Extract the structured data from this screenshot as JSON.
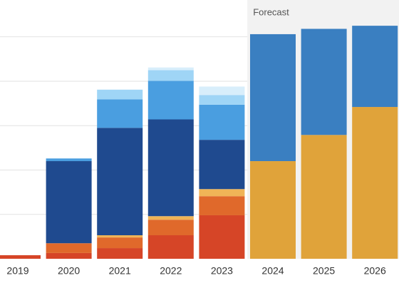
{
  "chart_data": {
    "type": "stacked-bar",
    "categories": [
      "2019",
      "2020",
      "2021",
      "2022",
      "2023",
      "2024",
      "2025",
      "2026"
    ],
    "forecast_label": "Forecast",
    "forecast_from": "2024",
    "series": [
      {
        "color": "#d64527",
        "values": [
          0.08,
          0.13,
          0.24,
          0.53,
          0.98,
          null,
          null,
          null
        ]
      },
      {
        "color": "#e0692b",
        "values": [
          null,
          0.22,
          0.24,
          0.35,
          0.43,
          null,
          null,
          null
        ]
      },
      {
        "color": "#f0b457",
        "values": [
          null,
          null,
          0.05,
          0.08,
          0.16,
          null,
          null,
          null
        ]
      },
      {
        "color": "#1f4a8f",
        "values": [
          null,
          1.85,
          2.42,
          2.18,
          1.11,
          null,
          null,
          null
        ]
      },
      {
        "color": "#4a9ee0",
        "values": [
          null,
          0.06,
          0.64,
          0.87,
          0.79,
          null,
          null,
          null
        ]
      },
      {
        "color": "#9fd5f6",
        "values": [
          null,
          null,
          0.22,
          0.24,
          0.22,
          null,
          null,
          null
        ]
      },
      {
        "color": "#d8eefb",
        "values": [
          null,
          null,
          null,
          0.06,
          0.19,
          null,
          null,
          null
        ]
      },
      {
        "color": "#e0a33a",
        "values": [
          null,
          null,
          null,
          null,
          null,
          2.2,
          2.79,
          3.42
        ]
      },
      {
        "color": "#3a7fc1",
        "values": [
          null,
          null,
          null,
          null,
          null,
          2.86,
          2.39,
          1.83
        ]
      }
    ],
    "ylim": [
      0,
      5.83
    ],
    "yticks": [
      1,
      2,
      3,
      4,
      5
    ],
    "grid": true
  }
}
